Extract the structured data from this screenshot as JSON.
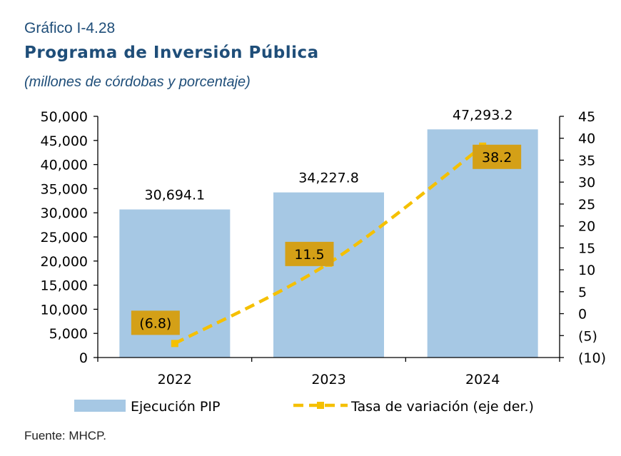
{
  "figure": {
    "label": "Gráfico I-4.28",
    "title": "Programa de Inversión Pública",
    "subtitle": "(millones de córdobas y porcentaje)",
    "source": "Fuente: MHCP."
  },
  "chart_data": {
    "type": "bar",
    "categories": [
      "2022",
      "2023",
      "2024"
    ],
    "series": [
      {
        "name": "Ejecución PIP",
        "type": "bar",
        "axis": "left",
        "values": [
          30694.1,
          34227.8,
          47293.2
        ],
        "labels": [
          "30,694.1",
          "34,227.8",
          "47,293.2"
        ],
        "color": "#a6c8e4"
      },
      {
        "name": "Tasa de variación (eje der.)",
        "type": "line",
        "axis": "right",
        "style": "dashed",
        "marker": "square",
        "values": [
          -6.8,
          11.5,
          38.2
        ],
        "labels": [
          "(6.8)",
          "11.5",
          "38.2"
        ],
        "color": "#f5c000",
        "label_bg": "#d4a017"
      }
    ],
    "y_left": {
      "range": [
        0,
        50000
      ],
      "ticks": [
        {
          "v": 0,
          "label": "0"
        },
        {
          "v": 5000,
          "label": "5,000"
        },
        {
          "v": 10000,
          "label": "10,000"
        },
        {
          "v": 15000,
          "label": "15,000"
        },
        {
          "v": 20000,
          "label": "20,000"
        },
        {
          "v": 25000,
          "label": "25,000"
        },
        {
          "v": 30000,
          "label": "30,000"
        },
        {
          "v": 35000,
          "label": "35,000"
        },
        {
          "v": 40000,
          "label": "40,000"
        },
        {
          "v": 45000,
          "label": "45,000"
        },
        {
          "v": 50000,
          "label": "50,000"
        }
      ]
    },
    "y_right": {
      "range": [
        -10,
        45
      ],
      "ticks": [
        {
          "v": -10,
          "label": "(10)"
        },
        {
          "v": -5,
          "label": "(5)"
        },
        {
          "v": 0,
          "label": "0"
        },
        {
          "v": 5,
          "label": "5"
        },
        {
          "v": 10,
          "label": "10"
        },
        {
          "v": 15,
          "label": "15"
        },
        {
          "v": 20,
          "label": "20"
        },
        {
          "v": 25,
          "label": "25"
        },
        {
          "v": 30,
          "label": "30"
        },
        {
          "v": 35,
          "label": "35"
        },
        {
          "v": 40,
          "label": "40"
        },
        {
          "v": 45,
          "label": "45"
        }
      ]
    },
    "grid": false,
    "legend": "bottom"
  }
}
